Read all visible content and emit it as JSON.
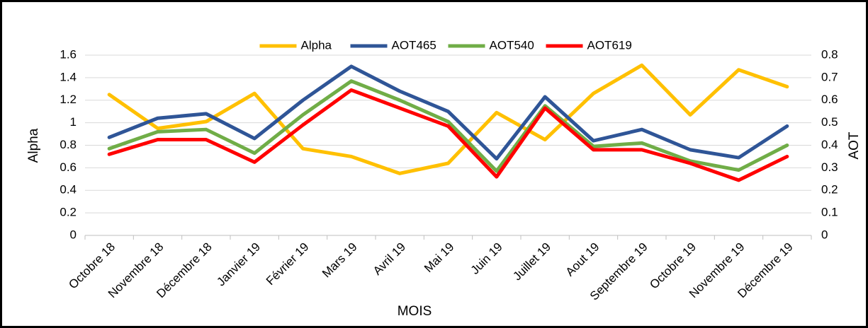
{
  "chart_data": {
    "type": "line",
    "categories": [
      "Octobre 18",
      "Novembre 18",
      "Décembre 18",
      "Janvier 19",
      "Février 19",
      "Mars 19",
      "Avril 19",
      "Mai 19",
      "Juin 19",
      "Juillet 19",
      "Aout 19",
      "Septembre 19",
      "Octobre 19",
      "Novembre 19",
      "Décembre 19"
    ],
    "series": [
      {
        "name": "Alpha",
        "color": "#ffc000",
        "values": [
          1.25,
          0.95,
          1.01,
          1.26,
          0.77,
          0.7,
          0.55,
          0.64,
          1.09,
          0.85,
          1.26,
          1.51,
          1.07,
          1.47,
          1.32
        ]
      },
      {
        "name": "AOT465",
        "color": "#2f5597",
        "axis": "y2",
        "values": [
          0.435,
          0.52,
          0.54,
          0.43,
          0.6,
          0.75,
          0.64,
          0.55,
          0.34,
          0.615,
          0.42,
          0.47,
          0.38,
          0.345,
          0.485
        ]
      },
      {
        "name": "AOT540",
        "color": "#70ad47",
        "axis": "y2",
        "values": [
          0.385,
          0.46,
          0.47,
          0.365,
          0.535,
          0.685,
          0.6,
          0.505,
          0.285,
          0.575,
          0.395,
          0.41,
          0.33,
          0.29,
          0.4
        ]
      },
      {
        "name": "AOT619",
        "color": "#ff0000",
        "axis": "y2",
        "values": [
          0.36,
          0.425,
          0.425,
          0.325,
          0.49,
          0.645,
          0.565,
          0.485,
          0.26,
          0.565,
          0.38,
          0.38,
          0.32,
          0.245,
          0.35
        ]
      }
    ],
    "xlabel": "MOIS",
    "ylabel": "Alpha",
    "y2label": "AOT",
    "ylim": [
      0,
      1.6
    ],
    "yticks": [
      0,
      0.2,
      0.4,
      0.6,
      0.8,
      1,
      1.2,
      1.4,
      1.6
    ],
    "y2lim": [
      0,
      0.8
    ],
    "y2ticks": [
      0,
      0.1,
      0.2,
      0.3,
      0.4,
      0.5,
      0.6,
      0.7,
      0.8
    ],
    "grid": true,
    "legend": "top"
  }
}
